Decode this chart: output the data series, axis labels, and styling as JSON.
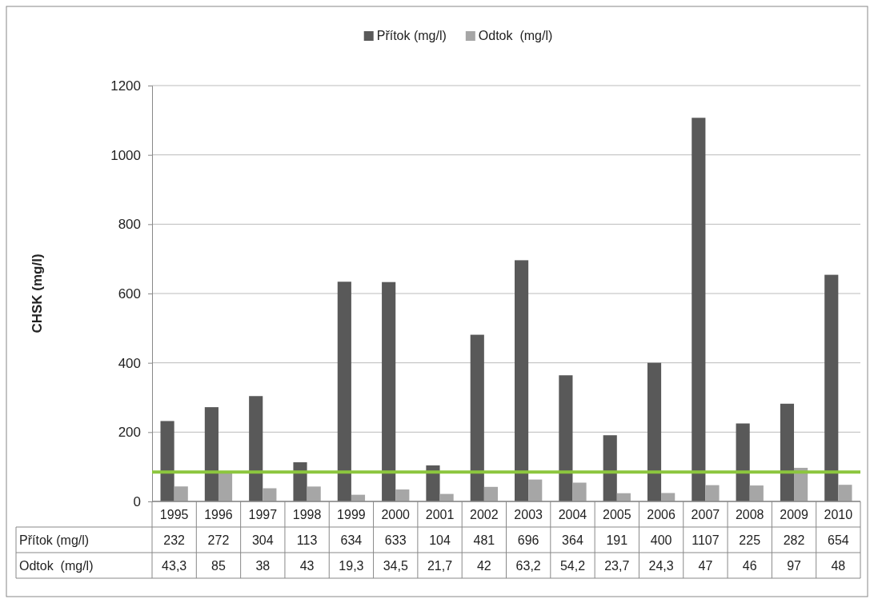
{
  "chart_data": {
    "type": "bar",
    "ylabel": "CHSK (mg/l)",
    "categories": [
      "1995",
      "1996",
      "1997",
      "1998",
      "1999",
      "2000",
      "2001",
      "2002",
      "2003",
      "2004",
      "2005",
      "2006",
      "2007",
      "2008",
      "2009",
      "2010"
    ],
    "series": [
      {
        "name": "Přítok (mg/l)",
        "color": "#595959",
        "values": [
          232,
          272,
          304,
          113,
          634,
          633,
          104,
          481,
          696,
          364,
          191,
          400,
          1107,
          225,
          282,
          654
        ],
        "value_labels": [
          "232",
          "272",
          "304",
          "113",
          "634",
          "633",
          "104",
          "481",
          "696",
          "364",
          "191",
          "400",
          "1107",
          "225",
          "282",
          "654"
        ]
      },
      {
        "name": "Odtok  (mg/l)",
        "color": "#a6a6a6",
        "values": [
          43.3,
          85,
          38,
          43,
          19.3,
          34.5,
          21.7,
          42,
          63.2,
          54.2,
          23.7,
          24.3,
          47,
          46,
          97,
          48
        ],
        "value_labels": [
          "43,3",
          "85",
          "38",
          "43",
          "19,3",
          "34,5",
          "21,7",
          "42",
          "63,2",
          "54,2",
          "23,7",
          "24,3",
          "47",
          "46",
          "97",
          "48"
        ]
      }
    ],
    "ylim": [
      0,
      1200
    ],
    "yticks": [
      0,
      200,
      400,
      600,
      800,
      1000,
      1200
    ],
    "grid": "y",
    "legend": "top",
    "data_labels": true,
    "ref_lines": [
      {
        "axis": "y",
        "value": 85,
        "color": "#8cc63e"
      }
    ]
  }
}
